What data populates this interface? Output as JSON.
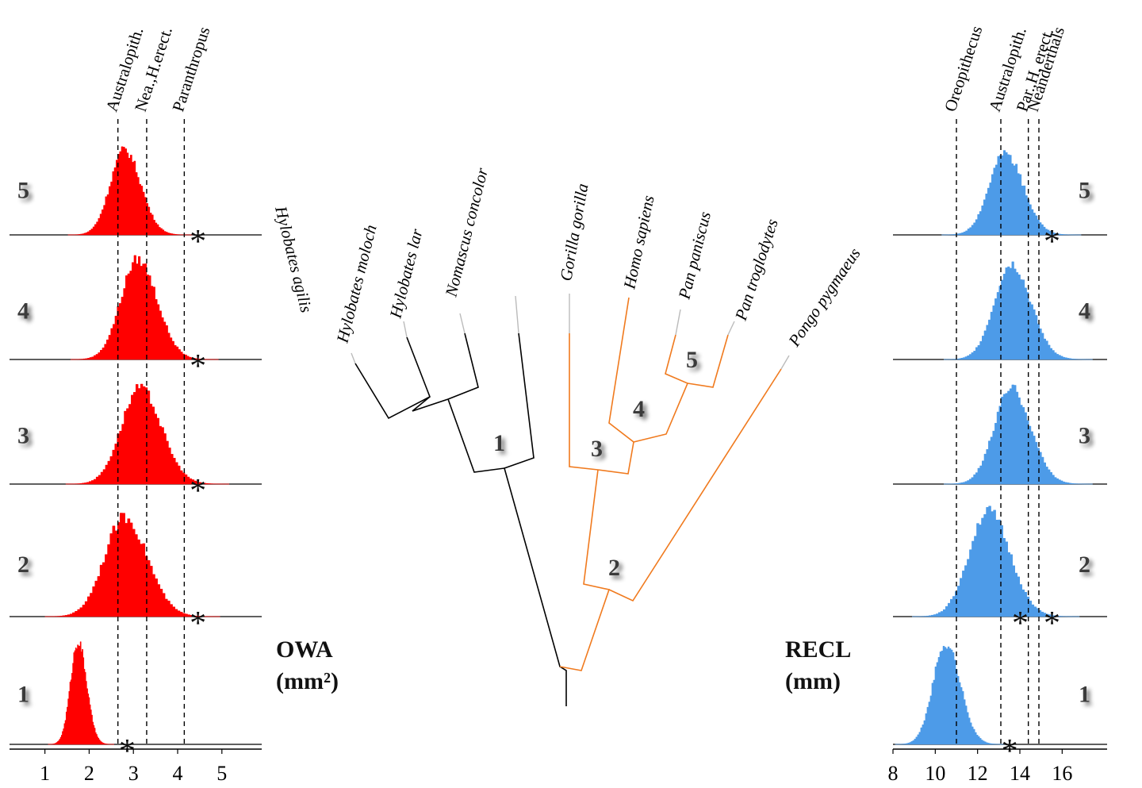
{
  "left_panel": {
    "measure": "OWA",
    "unit": "(mm²)",
    "x_ticks": [
      "1",
      "2",
      "3",
      "4",
      "5"
    ],
    "x_range": [
      0.2,
      5.9
    ],
    "reference_lines": [
      {
        "label": "Australopith.",
        "value": 2.65
      },
      {
        "label": "Nea.,H.erect.",
        "value": 3.3
      },
      {
        "label": "Paranthropus",
        "value": 4.15
      }
    ],
    "rows": [
      {
        "node": "5",
        "mean": 2.8,
        "sd": 0.32,
        "peak": 0.85,
        "star": 4.45
      },
      {
        "node": "4",
        "mean": 3.1,
        "sd": 0.38,
        "peak": 0.92,
        "star": 4.45
      },
      {
        "node": "3",
        "mean": 3.15,
        "sd": 0.42,
        "peak": 0.88,
        "star": 4.45
      },
      {
        "node": "2",
        "mean": 2.8,
        "sd": 0.45,
        "peak": 0.85,
        "star": 4.45
      },
      {
        "node": "1",
        "mean": 1.75,
        "sd": 0.17,
        "peak": 0.92,
        "star": 2.85
      }
    ],
    "color": "#ff0000"
  },
  "right_panel": {
    "measure": "RECL",
    "unit": "(mm)",
    "x_ticks": [
      "8",
      "10",
      "12",
      "14",
      "16"
    ],
    "x_range": [
      8,
      18.2
    ],
    "reference_lines": [
      {
        "label": "Oreopithecus",
        "value": 11.0
      },
      {
        "label": "Australopith.",
        "value": 13.1
      },
      {
        "label": "Par.,H. erect.",
        "value": 14.4
      },
      {
        "label": "Neanderthals",
        "value": 14.9
      }
    ],
    "rows": [
      {
        "node": "5",
        "mean": 13.3,
        "sd": 0.75,
        "peak": 0.82,
        "stars": [
          15.5
        ]
      },
      {
        "node": "4",
        "mean": 13.6,
        "sd": 0.8,
        "peak": 0.88,
        "stars": []
      },
      {
        "node": "3",
        "mean": 13.6,
        "sd": 0.8,
        "peak": 0.88,
        "stars": []
      },
      {
        "node": "2",
        "mean": 12.5,
        "sd": 0.9,
        "peak": 0.9,
        "stars": [
          14.0,
          15.5
        ]
      },
      {
        "node": "1",
        "mean": 10.5,
        "sd": 0.6,
        "peak": 0.9,
        "stars": [
          13.5
        ]
      }
    ],
    "color": "#4d9be8"
  },
  "tree": {
    "taxa": [
      "Hylobates agilis",
      "Hylobates moloch",
      "Hylobates lar",
      "Nomascus concolor",
      "Gorilla gorilla",
      "Homo sapiens",
      "Pan paniscus",
      "Pan troglodytes",
      "Pongo pygmaeus"
    ],
    "node_labels": [
      "1",
      "2",
      "3",
      "4",
      "5"
    ],
    "hominid_color": "#f07a1e",
    "gibbon_color": "#000000"
  },
  "star_symbol": "*"
}
